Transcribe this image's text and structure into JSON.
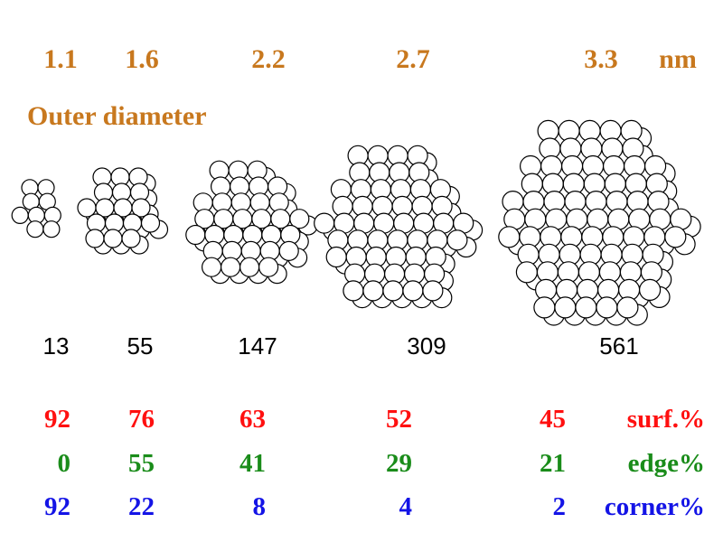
{
  "diameters": [
    1.1,
    1.6,
    2.2,
    2.7,
    3.3
  ],
  "unit": "nm",
  "diameter_label": "Outer diameter",
  "atoms": [
    13,
    55,
    147,
    309,
    561
  ],
  "surface": {
    "label": "surf.%",
    "values": [
      92,
      76,
      63,
      52,
      45
    ]
  },
  "edge": {
    "label": "edge%",
    "values": [
      0,
      55,
      41,
      29,
      21
    ]
  },
  "corner": {
    "label": "corner%",
    "values": [
      92,
      22,
      8,
      4,
      2
    ]
  }
}
